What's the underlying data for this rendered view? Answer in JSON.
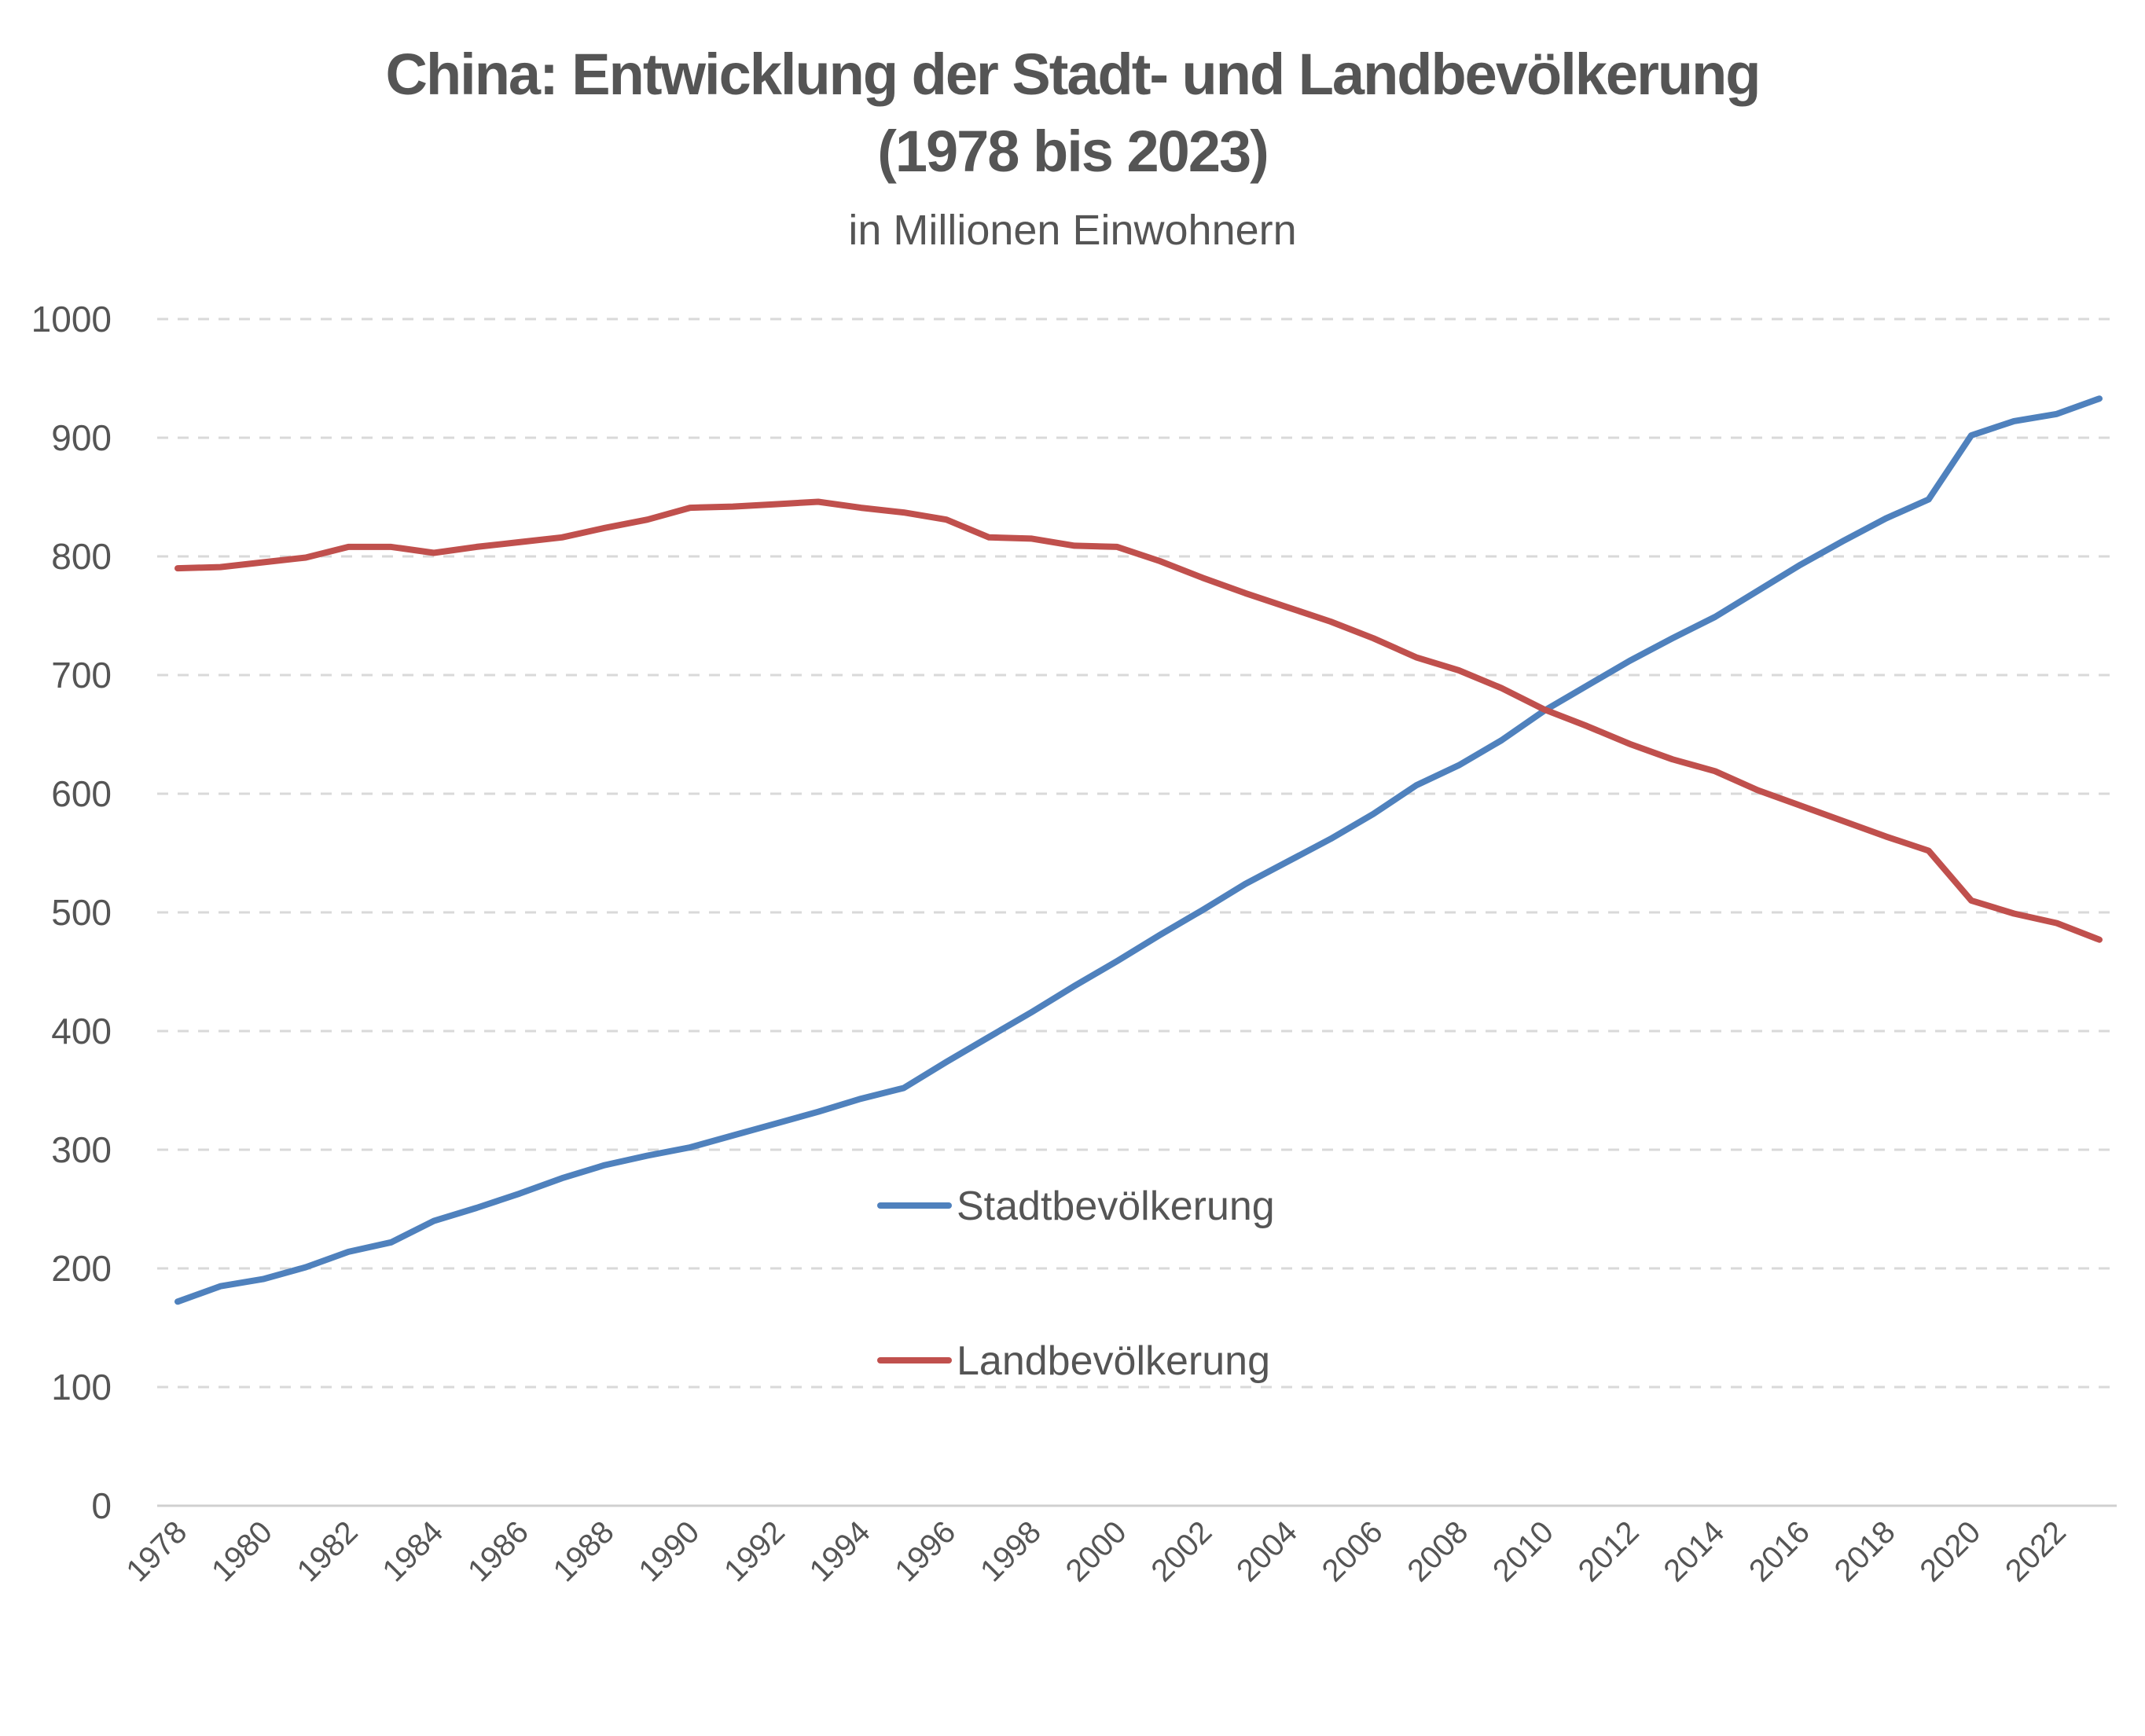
{
  "chart_data": {
    "type": "line",
    "title_line1": "China: Entwicklung der Stadt- und Landbevölkerung",
    "title_line2": "(1978 bis 2023)",
    "subtitle": "in Millionen Einwohnern",
    "xlabel": "",
    "ylabel": "",
    "ylim": [
      0,
      1000
    ],
    "y_ticks": [
      0,
      100,
      200,
      300,
      400,
      500,
      600,
      700,
      800,
      900,
      1000
    ],
    "x_tick_labels": [
      "1978",
      "1980",
      "1982",
      "1984",
      "1986",
      "1988",
      "1990",
      "1992",
      "1994",
      "1996",
      "1998",
      "2000",
      "2002",
      "2004",
      "2006",
      "2008",
      "2010",
      "2012",
      "2014",
      "2016",
      "2018",
      "2020",
      "2022"
    ],
    "grid": true,
    "legend_placement": "center",
    "x": [
      1978,
      1979,
      1980,
      1981,
      1982,
      1983,
      1984,
      1985,
      1986,
      1987,
      1988,
      1989,
      1990,
      1991,
      1992,
      1993,
      1994,
      1995,
      1996,
      1997,
      1998,
      1999,
      2000,
      2001,
      2002,
      2003,
      2004,
      2005,
      2006,
      2007,
      2008,
      2009,
      2010,
      2011,
      2012,
      2013,
      2014,
      2015,
      2016,
      2017,
      2018,
      2019,
      2020,
      2021,
      2022,
      2023
    ],
    "series": [
      {
        "name": "Stadtbevölkerung",
        "color": "#4F81BD",
        "values": [
          172,
          185,
          191,
          201,
          214,
          222,
          240,
          251,
          263,
          276,
          287,
          295,
          302,
          312,
          322,
          332,
          343,
          352,
          374,
          395,
          416,
          438,
          459,
          481,
          502,
          524,
          543,
          562,
          583,
          607,
          624,
          645,
          670,
          691,
          712,
          731,
          749,
          771,
          793,
          813,
          832,
          848,
          902,
          914,
          920,
          933
        ]
      },
      {
        "name": "Landbevölkerung",
        "color": "#C0504D",
        "values": [
          790,
          791,
          795,
          799,
          808,
          808,
          803,
          808,
          812,
          816,
          824,
          831,
          841,
          842,
          844,
          846,
          841,
          837,
          831,
          816,
          815,
          809,
          808,
          796,
          782,
          769,
          757,
          745,
          731,
          715,
          704,
          689,
          671,
          657,
          642,
          629,
          619,
          603,
          590,
          577,
          564,
          552,
          510,
          499,
          491,
          477
        ]
      }
    ]
  }
}
